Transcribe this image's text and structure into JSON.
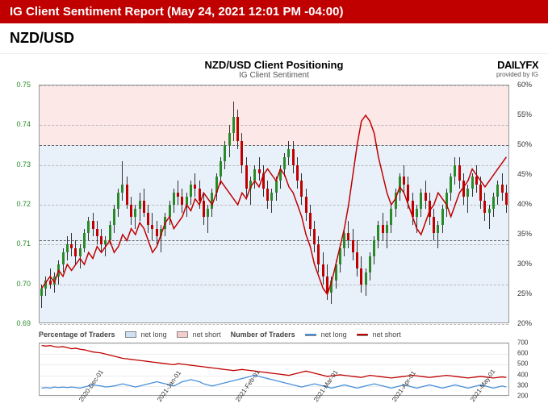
{
  "header": {
    "title": "IG Client Sentiment Report (May 24, 2021 12:01 PM -04:00)"
  },
  "pair": "NZD/USD",
  "logo": {
    "main": "DAILYFX",
    "sub": "provided by IG"
  },
  "main_chart": {
    "title": "NZD/USD Client Positioning",
    "subtitle": "IG Client Sentiment",
    "left_axis": {
      "min": 0.69,
      "max": 0.75,
      "ticks": [
        0.69,
        0.7,
        0.71,
        0.72,
        0.73,
        0.74,
        0.75
      ],
      "color": "#2a8a2a"
    },
    "right_axis": {
      "min": 20,
      "max": 60,
      "ticks": [
        20,
        25,
        30,
        35,
        40,
        45,
        50,
        55,
        60
      ]
    },
    "dash_levels": [
      0.711,
      0.735
    ],
    "bg_split": 50,
    "bg_pink": "#fde8e8",
    "bg_blue": "#e8f0fa",
    "sentiment_color": "#c00000",
    "sentiment": [
      26,
      27,
      28,
      27,
      29,
      28,
      30,
      29,
      30,
      31,
      30,
      32,
      31,
      33,
      32,
      33,
      34,
      32,
      33,
      35,
      34,
      36,
      35,
      37,
      36,
      34,
      32,
      33,
      35,
      37,
      38,
      36,
      37,
      38,
      40,
      39,
      41,
      40,
      42,
      41,
      40,
      42,
      44,
      43,
      42,
      41,
      40,
      42,
      41,
      43,
      44,
      43,
      45,
      46,
      45,
      44,
      46,
      45,
      43,
      42,
      40,
      38,
      35,
      33,
      30,
      28,
      26,
      25,
      27,
      30,
      33,
      36,
      40,
      45,
      50,
      54,
      55,
      54,
      52,
      48,
      45,
      42,
      40,
      41,
      43,
      42,
      40,
      38,
      36,
      35,
      37,
      39,
      40,
      42,
      41,
      40,
      38,
      40,
      42,
      43,
      44,
      46,
      45,
      44,
      43,
      44,
      45,
      46,
      47,
      48
    ],
    "candles": [
      {
        "o": 0.697,
        "h": 0.7,
        "l": 0.694,
        "c": 0.699
      },
      {
        "o": 0.699,
        "h": 0.702,
        "l": 0.697,
        "c": 0.701
      },
      {
        "o": 0.701,
        "h": 0.704,
        "l": 0.699,
        "c": 0.7
      },
      {
        "o": 0.7,
        "h": 0.703,
        "l": 0.698,
        "c": 0.702
      },
      {
        "o": 0.702,
        "h": 0.706,
        "l": 0.7,
        "c": 0.705
      },
      {
        "o": 0.705,
        "h": 0.709,
        "l": 0.703,
        "c": 0.708
      },
      {
        "o": 0.708,
        "h": 0.712,
        "l": 0.706,
        "c": 0.71
      },
      {
        "o": 0.71,
        "h": 0.713,
        "l": 0.707,
        "c": 0.709
      },
      {
        "o": 0.709,
        "h": 0.711,
        "l": 0.705,
        "c": 0.707
      },
      {
        "o": 0.707,
        "h": 0.71,
        "l": 0.704,
        "c": 0.709
      },
      {
        "o": 0.709,
        "h": 0.714,
        "l": 0.708,
        "c": 0.713
      },
      {
        "o": 0.713,
        "h": 0.717,
        "l": 0.711,
        "c": 0.716
      },
      {
        "o": 0.716,
        "h": 0.718,
        "l": 0.712,
        "c": 0.714
      },
      {
        "o": 0.714,
        "h": 0.716,
        "l": 0.71,
        "c": 0.712
      },
      {
        "o": 0.712,
        "h": 0.714,
        "l": 0.708,
        "c": 0.71
      },
      {
        "o": 0.71,
        "h": 0.712,
        "l": 0.707,
        "c": 0.711
      },
      {
        "o": 0.711,
        "h": 0.716,
        "l": 0.71,
        "c": 0.715
      },
      {
        "o": 0.715,
        "h": 0.72,
        "l": 0.713,
        "c": 0.719
      },
      {
        "o": 0.719,
        "h": 0.724,
        "l": 0.717,
        "c": 0.723
      },
      {
        "o": 0.723,
        "h": 0.731,
        "l": 0.721,
        "c": 0.725
      },
      {
        "o": 0.725,
        "h": 0.727,
        "l": 0.719,
        "c": 0.72
      },
      {
        "o": 0.72,
        "h": 0.722,
        "l": 0.715,
        "c": 0.717
      },
      {
        "o": 0.717,
        "h": 0.72,
        "l": 0.714,
        "c": 0.719
      },
      {
        "o": 0.719,
        "h": 0.723,
        "l": 0.716,
        "c": 0.721
      },
      {
        "o": 0.721,
        "h": 0.724,
        "l": 0.717,
        "c": 0.718
      },
      {
        "o": 0.718,
        "h": 0.72,
        "l": 0.713,
        "c": 0.715
      },
      {
        "o": 0.715,
        "h": 0.718,
        "l": 0.711,
        "c": 0.714
      },
      {
        "o": 0.714,
        "h": 0.716,
        "l": 0.71,
        "c": 0.712
      },
      {
        "o": 0.712,
        "h": 0.715,
        "l": 0.708,
        "c": 0.714
      },
      {
        "o": 0.714,
        "h": 0.718,
        "l": 0.712,
        "c": 0.717
      },
      {
        "o": 0.717,
        "h": 0.721,
        "l": 0.715,
        "c": 0.72
      },
      {
        "o": 0.72,
        "h": 0.724,
        "l": 0.718,
        "c": 0.723
      },
      {
        "o": 0.723,
        "h": 0.726,
        "l": 0.72,
        "c": 0.722
      },
      {
        "o": 0.722,
        "h": 0.724,
        "l": 0.718,
        "c": 0.72
      },
      {
        "o": 0.72,
        "h": 0.723,
        "l": 0.717,
        "c": 0.722
      },
      {
        "o": 0.722,
        "h": 0.726,
        "l": 0.72,
        "c": 0.725
      },
      {
        "o": 0.725,
        "h": 0.728,
        "l": 0.722,
        "c": 0.724
      },
      {
        "o": 0.724,
        "h": 0.726,
        "l": 0.719,
        "c": 0.721
      },
      {
        "o": 0.721,
        "h": 0.723,
        "l": 0.715,
        "c": 0.717
      },
      {
        "o": 0.717,
        "h": 0.72,
        "l": 0.713,
        "c": 0.719
      },
      {
        "o": 0.719,
        "h": 0.724,
        "l": 0.717,
        "c": 0.723
      },
      {
        "o": 0.723,
        "h": 0.728,
        "l": 0.721,
        "c": 0.727
      },
      {
        "o": 0.727,
        "h": 0.732,
        "l": 0.725,
        "c": 0.731
      },
      {
        "o": 0.731,
        "h": 0.736,
        "l": 0.729,
        "c": 0.735
      },
      {
        "o": 0.735,
        "h": 0.74,
        "l": 0.732,
        "c": 0.738
      },
      {
        "o": 0.738,
        "h": 0.746,
        "l": 0.736,
        "c": 0.742
      },
      {
        "o": 0.742,
        "h": 0.744,
        "l": 0.734,
        "c": 0.736
      },
      {
        "o": 0.736,
        "h": 0.738,
        "l": 0.728,
        "c": 0.73
      },
      {
        "o": 0.73,
        "h": 0.732,
        "l": 0.722,
        "c": 0.724
      },
      {
        "o": 0.724,
        "h": 0.727,
        "l": 0.72,
        "c": 0.726
      },
      {
        "o": 0.726,
        "h": 0.73,
        "l": 0.724,
        "c": 0.729
      },
      {
        "o": 0.729,
        "h": 0.732,
        "l": 0.726,
        "c": 0.728
      },
      {
        "o": 0.728,
        "h": 0.73,
        "l": 0.722,
        "c": 0.724
      },
      {
        "o": 0.724,
        "h": 0.726,
        "l": 0.719,
        "c": 0.721
      },
      {
        "o": 0.721,
        "h": 0.724,
        "l": 0.718,
        "c": 0.723
      },
      {
        "o": 0.723,
        "h": 0.727,
        "l": 0.721,
        "c": 0.726
      },
      {
        "o": 0.726,
        "h": 0.73,
        "l": 0.724,
        "c": 0.729
      },
      {
        "o": 0.729,
        "h": 0.733,
        "l": 0.727,
        "c": 0.732
      },
      {
        "o": 0.732,
        "h": 0.736,
        "l": 0.73,
        "c": 0.734
      },
      {
        "o": 0.734,
        "h": 0.736,
        "l": 0.728,
        "c": 0.73
      },
      {
        "o": 0.73,
        "h": 0.732,
        "l": 0.724,
        "c": 0.726
      },
      {
        "o": 0.726,
        "h": 0.728,
        "l": 0.72,
        "c": 0.722
      },
      {
        "o": 0.722,
        "h": 0.724,
        "l": 0.716,
        "c": 0.718
      },
      {
        "o": 0.718,
        "h": 0.72,
        "l": 0.712,
        "c": 0.714
      },
      {
        "o": 0.714,
        "h": 0.716,
        "l": 0.708,
        "c": 0.71
      },
      {
        "o": 0.71,
        "h": 0.712,
        "l": 0.703,
        "c": 0.705
      },
      {
        "o": 0.705,
        "h": 0.708,
        "l": 0.7,
        "c": 0.702
      },
      {
        "o": 0.702,
        "h": 0.705,
        "l": 0.696,
        "c": 0.698
      },
      {
        "o": 0.698,
        "h": 0.702,
        "l": 0.695,
        "c": 0.701
      },
      {
        "o": 0.701,
        "h": 0.706,
        "l": 0.699,
        "c": 0.705
      },
      {
        "o": 0.705,
        "h": 0.71,
        "l": 0.703,
        "c": 0.709
      },
      {
        "o": 0.709,
        "h": 0.714,
        "l": 0.707,
        "c": 0.713
      },
      {
        "o": 0.713,
        "h": 0.716,
        "l": 0.709,
        "c": 0.711
      },
      {
        "o": 0.711,
        "h": 0.714,
        "l": 0.706,
        "c": 0.708
      },
      {
        "o": 0.708,
        "h": 0.711,
        "l": 0.702,
        "c": 0.704
      },
      {
        "o": 0.704,
        "h": 0.707,
        "l": 0.698,
        "c": 0.7
      },
      {
        "o": 0.7,
        "h": 0.704,
        "l": 0.697,
        "c": 0.703
      },
      {
        "o": 0.703,
        "h": 0.708,
        "l": 0.701,
        "c": 0.707
      },
      {
        "o": 0.707,
        "h": 0.712,
        "l": 0.705,
        "c": 0.711
      },
      {
        "o": 0.711,
        "h": 0.716,
        "l": 0.709,
        "c": 0.715
      },
      {
        "o": 0.715,
        "h": 0.718,
        "l": 0.711,
        "c": 0.713
      },
      {
        "o": 0.713,
        "h": 0.716,
        "l": 0.709,
        "c": 0.715
      },
      {
        "o": 0.715,
        "h": 0.72,
        "l": 0.713,
        "c": 0.719
      },
      {
        "o": 0.719,
        "h": 0.724,
        "l": 0.717,
        "c": 0.723
      },
      {
        "o": 0.723,
        "h": 0.728,
        "l": 0.721,
        "c": 0.727
      },
      {
        "o": 0.727,
        "h": 0.73,
        "l": 0.723,
        "c": 0.725
      },
      {
        "o": 0.725,
        "h": 0.727,
        "l": 0.719,
        "c": 0.721
      },
      {
        "o": 0.721,
        "h": 0.723,
        "l": 0.715,
        "c": 0.717
      },
      {
        "o": 0.717,
        "h": 0.72,
        "l": 0.713,
        "c": 0.719
      },
      {
        "o": 0.719,
        "h": 0.724,
        "l": 0.717,
        "c": 0.723
      },
      {
        "o": 0.723,
        "h": 0.726,
        "l": 0.719,
        "c": 0.721
      },
      {
        "o": 0.721,
        "h": 0.723,
        "l": 0.715,
        "c": 0.717
      },
      {
        "o": 0.717,
        "h": 0.719,
        "l": 0.711,
        "c": 0.713
      },
      {
        "o": 0.713,
        "h": 0.716,
        "l": 0.709,
        "c": 0.715
      },
      {
        "o": 0.715,
        "h": 0.72,
        "l": 0.713,
        "c": 0.719
      },
      {
        "o": 0.719,
        "h": 0.724,
        "l": 0.717,
        "c": 0.723
      },
      {
        "o": 0.723,
        "h": 0.728,
        "l": 0.721,
        "c": 0.727
      },
      {
        "o": 0.727,
        "h": 0.732,
        "l": 0.725,
        "c": 0.73
      },
      {
        "o": 0.73,
        "h": 0.732,
        "l": 0.724,
        "c": 0.726
      },
      {
        "o": 0.726,
        "h": 0.728,
        "l": 0.72,
        "c": 0.722
      },
      {
        "o": 0.722,
        "h": 0.725,
        "l": 0.718,
        "c": 0.724
      },
      {
        "o": 0.724,
        "h": 0.728,
        "l": 0.722,
        "c": 0.727
      },
      {
        "o": 0.727,
        "h": 0.73,
        "l": 0.723,
        "c": 0.725
      },
      {
        "o": 0.725,
        "h": 0.727,
        "l": 0.719,
        "c": 0.721
      },
      {
        "o": 0.721,
        "h": 0.723,
        "l": 0.716,
        "c": 0.718
      },
      {
        "o": 0.718,
        "h": 0.72,
        "l": 0.714,
        "c": 0.719
      },
      {
        "o": 0.719,
        "h": 0.723,
        "l": 0.717,
        "c": 0.722
      },
      {
        "o": 0.722,
        "h": 0.726,
        "l": 0.72,
        "c": 0.725
      },
      {
        "o": 0.725,
        "h": 0.728,
        "l": 0.721,
        "c": 0.723
      },
      {
        "o": 0.723,
        "h": 0.725,
        "l": 0.718,
        "c": 0.72
      }
    ],
    "x_dates": [
      "2020-Dec-01",
      "2021-Jan-01",
      "2021-Feb-01",
      "2021-Mar-01",
      "2021-Apr-01",
      "2021-May-01"
    ]
  },
  "sub_chart": {
    "legend": {
      "pct_label": "Percentage of Traders",
      "num_label": "Number of Traders",
      "net_long": "net long",
      "net_short": "net short",
      "long_color": "#4a90d9",
      "short_color": "#c00000",
      "long_fill": "#cfe2f3",
      "short_fill": "#f4cccc"
    },
    "y_axis": {
      "min": 200,
      "max": 700,
      "ticks": [
        200,
        300,
        400,
        500,
        600,
        700
      ]
    },
    "net_long": [
      280,
      285,
      280,
      290,
      285,
      290,
      285,
      290,
      285,
      280,
      290,
      300,
      310,
      305,
      300,
      290,
      295,
      300,
      310,
      320,
      310,
      300,
      290,
      300,
      310,
      320,
      330,
      340,
      330,
      320,
      310,
      300,
      320,
      340,
      350,
      360,
      350,
      340,
      320,
      310,
      300,
      310,
      320,
      330,
      340,
      350,
      360,
      370,
      380,
      390,
      400,
      390,
      380,
      370,
      360,
      350,
      340,
      330,
      320,
      310,
      300,
      290,
      300,
      310,
      320,
      310,
      300,
      290,
      280,
      290,
      300,
      310,
      300,
      290,
      280,
      290,
      300,
      310,
      320,
      310,
      300,
      290,
      280,
      290,
      300,
      310,
      300,
      290,
      280,
      290,
      300,
      310,
      300,
      290,
      280,
      290,
      300,
      310,
      300,
      290,
      280,
      290,
      300,
      310,
      300,
      290,
      280,
      290,
      300,
      290
    ],
    "net_short": [
      680,
      675,
      680,
      670,
      665,
      670,
      660,
      650,
      655,
      645,
      640,
      630,
      620,
      615,
      610,
      600,
      590,
      580,
      570,
      560,
      555,
      550,
      545,
      540,
      535,
      530,
      525,
      520,
      515,
      510,
      505,
      500,
      510,
      505,
      500,
      495,
      490,
      485,
      480,
      475,
      470,
      465,
      460,
      455,
      450,
      445,
      450,
      455,
      450,
      445,
      440,
      435,
      430,
      425,
      420,
      415,
      410,
      405,
      400,
      410,
      420,
      430,
      440,
      430,
      420,
      410,
      400,
      390,
      395,
      400,
      405,
      400,
      395,
      390,
      385,
      380,
      390,
      400,
      395,
      390,
      385,
      380,
      375,
      380,
      385,
      390,
      395,
      400,
      395,
      390,
      385,
      380,
      385,
      390,
      395,
      400,
      395,
      390,
      385,
      380,
      375,
      380,
      385,
      390,
      385,
      380,
      375,
      380,
      385,
      380
    ]
  }
}
